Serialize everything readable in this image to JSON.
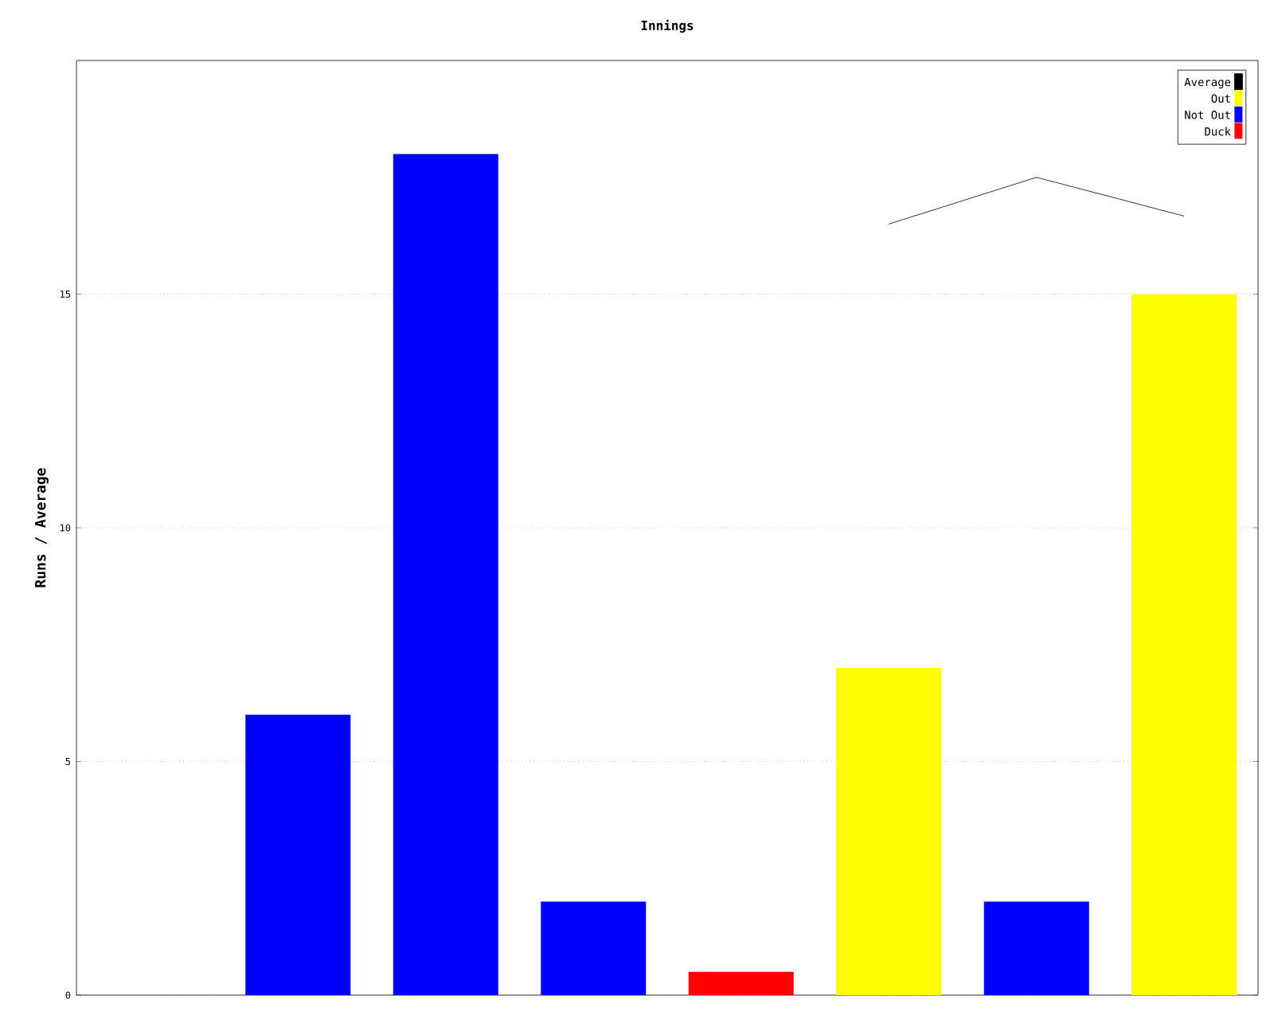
{
  "chart_data": {
    "type": "bar",
    "title": "Innings",
    "ylabel": "Runs / Average",
    "categories": [
      null,
      null,
      null,
      null,
      null,
      null,
      null,
      null
    ],
    "series": [
      {
        "name": "Average",
        "type": "line",
        "color": "#000000",
        "values": [
          null,
          null,
          null,
          null,
          null,
          16.5,
          17.5,
          16.67
        ]
      },
      {
        "name": "Out",
        "color": "#ffff00",
        "values": [
          null,
          null,
          null,
          null,
          null,
          7,
          null,
          15
        ]
      },
      {
        "name": "Not Out",
        "color": "#0000ff",
        "values": [
          null,
          6,
          18,
          2,
          null,
          null,
          2,
          null
        ]
      },
      {
        "name": "Duck",
        "color": "#ff0000",
        "values": [
          null,
          null,
          null,
          null,
          0.5,
          null,
          null,
          null
        ]
      }
    ],
    "ylim": [
      0,
      20
    ],
    "yticks": [
      0,
      5,
      10,
      15
    ],
    "grid": "y",
    "legend": "top right",
    "marker": "none",
    "line_style": "solid"
  }
}
